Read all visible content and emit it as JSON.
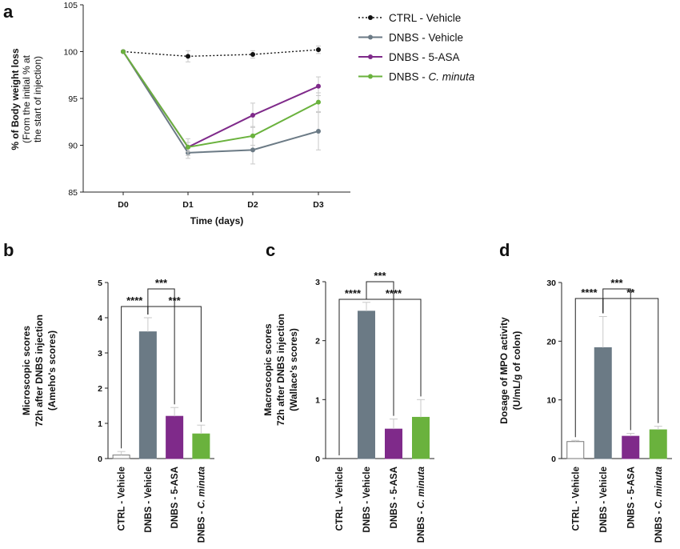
{
  "chart_data": [
    {
      "panel": "a",
      "type": "line",
      "x": [
        "D0",
        "D1",
        "D2",
        "D3"
      ],
      "xlabel": "Time (days)",
      "ylabel_lines": [
        "% of Body weight loss",
        "(From the initial % at",
        "the start of injection)"
      ],
      "ylim": [
        85,
        105
      ],
      "yticks": [
        85,
        90,
        95,
        100,
        105
      ],
      "series": [
        {
          "name": "CTRL - Vehicle",
          "name_parts": [
            "CTRL - Vehicle",
            ""
          ],
          "color": "#111111",
          "dashed": true,
          "values": [
            100,
            99.5,
            99.7,
            100.2
          ],
          "errors": [
            0,
            0.6,
            0.4,
            0.4
          ]
        },
        {
          "name": "DNBS - Vehicle",
          "name_parts": [
            "DNBS - Vehicle",
            ""
          ],
          "color": "#6b7a85",
          "dashed": false,
          "values": [
            100,
            89.2,
            89.5,
            91.5
          ],
          "errors": [
            0,
            0.6,
            1.5,
            2.0
          ]
        },
        {
          "name": "DNBS - 5-ASA",
          "name_parts": [
            "DNBS - 5-ASA",
            ""
          ],
          "color": "#7f2a8a",
          "dashed": false,
          "values": [
            100,
            89.8,
            93.2,
            96.3
          ],
          "errors": [
            0,
            0.5,
            1.3,
            1.0
          ]
        },
        {
          "name": "DNBS - C. minuta",
          "name_parts": [
            "DNBS - ",
            "C. minuta"
          ],
          "color": "#6ab23d",
          "dashed": false,
          "values": [
            100,
            89.8,
            91.0,
            94.6
          ],
          "errors": [
            0,
            0.9,
            1.0,
            1.0
          ]
        }
      ]
    },
    {
      "panel": "b",
      "type": "bar",
      "ylabel_lines": [
        "Microscopic scores",
        "72h after DNBS injection",
        "(Ameho's scores)"
      ],
      "ylim": [
        0,
        5
      ],
      "yticks": [
        0,
        1,
        2,
        3,
        4,
        5
      ],
      "categories": [
        {
          "label": [
            "CTRL - Vehicle",
            ""
          ],
          "value": 0.1,
          "error": 0.1,
          "color": "#ffffff",
          "stroke": "#777777"
        },
        {
          "label": [
            "DNBS - Vehicle",
            ""
          ],
          "value": 3.6,
          "error": 0.4,
          "color": "#6b7a85",
          "stroke": "#6b7a85"
        },
        {
          "label": [
            "DNBS - 5-ASA",
            ""
          ],
          "value": 1.2,
          "error": 0.25,
          "color": "#7f2a8a",
          "stroke": "#7f2a8a"
        },
        {
          "label": [
            "DNBS - ",
            "C. minuta"
          ],
          "value": 0.7,
          "error": 0.25,
          "color": "#6ab23d",
          "stroke": "#6ab23d"
        }
      ],
      "significance": [
        {
          "from": 0,
          "to": 1,
          "label": "****"
        },
        {
          "from": 1,
          "to": 2,
          "label": "***"
        },
        {
          "from": 1,
          "to": 3,
          "label": "***"
        }
      ]
    },
    {
      "panel": "c",
      "type": "bar",
      "ylabel_lines": [
        "Macroscopic scores",
        "72h after DNBS injection",
        "(Wallace's scores)"
      ],
      "ylim": [
        0,
        3
      ],
      "yticks": [
        0,
        1,
        2,
        3
      ],
      "categories": [
        {
          "label": [
            "CTRL - Vehicle",
            ""
          ],
          "value": 0,
          "error": 0,
          "color": "#ffffff",
          "stroke": "#777777"
        },
        {
          "label": [
            "DNBS - Vehicle",
            ""
          ],
          "value": 2.5,
          "error": 0.15,
          "color": "#6b7a85",
          "stroke": "#6b7a85"
        },
        {
          "label": [
            "DNBS - 5-ASA",
            ""
          ],
          "value": 0.5,
          "error": 0.17,
          "color": "#7f2a8a",
          "stroke": "#7f2a8a"
        },
        {
          "label": [
            "DNBS - ",
            "C. minuta"
          ],
          "value": 0.7,
          "error": 0.3,
          "color": "#6ab23d",
          "stroke": "#6ab23d"
        }
      ],
      "significance": [
        {
          "from": 0,
          "to": 1,
          "label": "****"
        },
        {
          "from": 1,
          "to": 2,
          "label": "***"
        },
        {
          "from": 1,
          "to": 3,
          "label": "****"
        }
      ]
    },
    {
      "panel": "d",
      "type": "bar",
      "ylabel_lines": [
        "Dosage of MPO activity",
        "(U/mL/g of colon)"
      ],
      "ylim": [
        0,
        30
      ],
      "yticks": [
        0,
        10,
        20,
        30
      ],
      "categories": [
        {
          "label": [
            "CTRL - Vehicle",
            ""
          ],
          "value": 2.9,
          "error": 0.2,
          "color": "#ffffff",
          "stroke": "#777777"
        },
        {
          "label": [
            "DNBS - Vehicle",
            ""
          ],
          "value": 18.9,
          "error": 5.3,
          "color": "#6b7a85",
          "stroke": "#6b7a85"
        },
        {
          "label": [
            "DNBS - 5-ASA",
            ""
          ],
          "value": 3.8,
          "error": 0.5,
          "color": "#7f2a8a",
          "stroke": "#7f2a8a"
        },
        {
          "label": [
            "DNBS - ",
            "C. minuta"
          ],
          "value": 4.9,
          "error": 0.6,
          "color": "#6ab23d",
          "stroke": "#6ab23d"
        }
      ],
      "significance": [
        {
          "from": 0,
          "to": 1,
          "label": "****"
        },
        {
          "from": 1,
          "to": 2,
          "label": "***"
        },
        {
          "from": 1,
          "to": 3,
          "label": "**"
        }
      ]
    }
  ],
  "panel_letters": {
    "a": "a",
    "b": "b",
    "c": "c",
    "d": "d"
  }
}
